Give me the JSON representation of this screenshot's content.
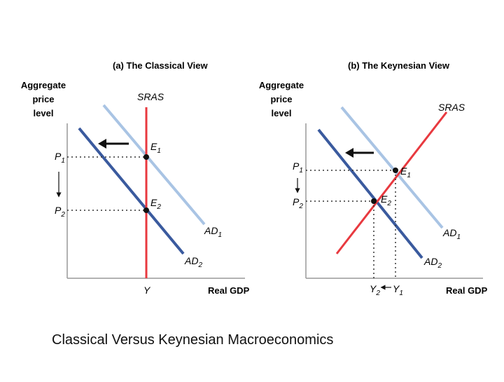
{
  "colors": {
    "ad1": "#a9c4e4",
    "ad2": "#3a5a9e",
    "sras": "#e8393f",
    "axis": "#999999",
    "text": "#111111"
  },
  "left_panel": {
    "title": "(a) The Classical View",
    "y_axis_label": [
      "Aggregate",
      "price",
      "level"
    ],
    "x_axis_label": "Real GDP",
    "sras_label": "SRAS",
    "ad1_label": "AD",
    "ad1_sub": "1",
    "ad2_label": "AD",
    "ad2_sub": "2",
    "e1_label": "E",
    "e1_sub": "1",
    "e2_label": "E",
    "e2_sub": "2",
    "p1_label": "P",
    "p1_sub": "1",
    "p2_label": "P",
    "p2_sub": "2",
    "y_label": "Y"
  },
  "right_panel": {
    "title": "(b) The Keynesian View",
    "y_axis_label": [
      "Aggregate",
      "price",
      "level"
    ],
    "x_axis_label": "Real GDP",
    "sras_label": "SRAS",
    "ad1_label": "AD",
    "ad1_sub": "1",
    "ad2_label": "AD",
    "ad2_sub": "2",
    "e1_label": "E",
    "e1_sub": "1",
    "e2_label": "E",
    "e2_sub": "2",
    "p1_label": "P",
    "p1_sub": "1",
    "p2_label": "P",
    "p2_sub": "2",
    "y1_label": "Y",
    "y1_sub": "1",
    "y2_label": "Y",
    "y2_sub": "2"
  },
  "caption": "Classical Versus Keynesian Macroeconomics"
}
